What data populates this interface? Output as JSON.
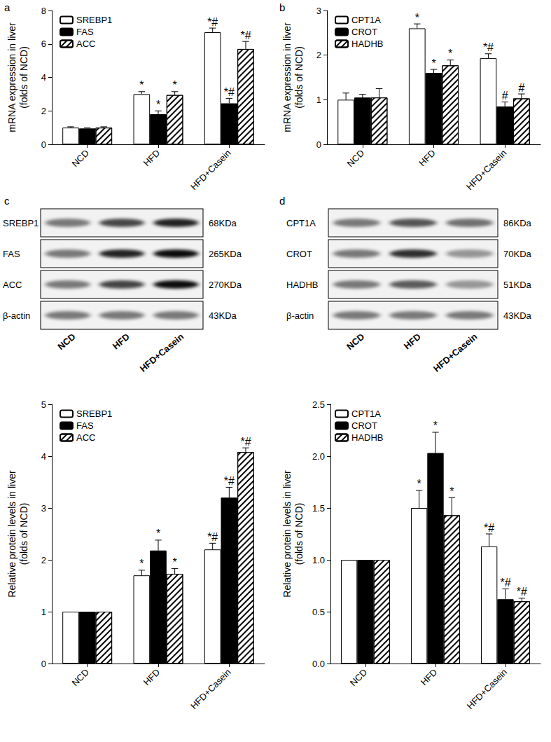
{
  "chart_data": [
    {
      "panel": "a",
      "type": "bar",
      "ylabel": "mRNA expression in liver\n(folds of NCD)",
      "categories": [
        "NCD",
        "HFD",
        "HFD+Casein"
      ],
      "ylim": [
        0,
        8
      ],
      "yticks": [
        0,
        2,
        4,
        6,
        8
      ],
      "grid": false,
      "legend": "upper left",
      "series": [
        {
          "name": "SREBP1",
          "color": "#ffffff",
          "values": [
            1.0,
            3.0,
            6.7
          ],
          "errors": [
            0.05,
            0.15,
            0.25
          ],
          "annotations": [
            null,
            "*",
            "*#"
          ]
        },
        {
          "name": "FAS",
          "color": "#000000",
          "values": [
            0.95,
            1.8,
            2.45
          ],
          "errors": [
            0.03,
            0.2,
            0.3
          ],
          "annotations": [
            null,
            "*",
            "*#"
          ]
        },
        {
          "name": "ACC",
          "color": "#ffffff",
          "marker": "hatched",
          "values": [
            1.0,
            2.95,
            5.7
          ],
          "errors": [
            0.05,
            0.2,
            0.45
          ],
          "annotations": [
            null,
            "*",
            "*#"
          ]
        }
      ]
    },
    {
      "panel": "b",
      "type": "bar",
      "ylabel": "mRNA expression in liver\n(folds of NCD)",
      "categories": [
        "NCD",
        "HFD",
        "HFD+Casein"
      ],
      "ylim": [
        0,
        3
      ],
      "yticks": [
        0,
        1,
        2,
        3
      ],
      "grid": false,
      "legend": "upper left",
      "series": [
        {
          "name": "CPT1A",
          "color": "#ffffff",
          "values": [
            1.0,
            2.6,
            1.93
          ],
          "errors": [
            0.15,
            0.1,
            0.1
          ],
          "annotations": [
            null,
            "*",
            "*#"
          ]
        },
        {
          "name": "CROT",
          "color": "#000000",
          "values": [
            1.05,
            1.6,
            0.85
          ],
          "errors": [
            0.07,
            0.08,
            0.1
          ],
          "annotations": [
            null,
            "*",
            "#"
          ]
        },
        {
          "name": "HADHB",
          "color": "#ffffff",
          "marker": "hatched",
          "values": [
            1.05,
            1.77,
            1.03
          ],
          "errors": [
            0.2,
            0.12,
            0.1
          ],
          "annotations": [
            null,
            "*",
            "#"
          ]
        }
      ]
    },
    {
      "type": "bar",
      "ylabel": "Relative protein levels in liver\n(folds of NCD)",
      "categories": [
        "NCD",
        "HFD",
        "HFD+Casein"
      ],
      "ylim": [
        0,
        5
      ],
      "yticks": [
        0,
        1,
        2,
        3,
        4,
        5
      ],
      "grid": false,
      "legend": "upper left",
      "series": [
        {
          "name": "SREBP1",
          "color": "#ffffff",
          "values": [
            1.0,
            1.7,
            2.2
          ],
          "errors": [
            0.0,
            0.1,
            0.12
          ],
          "annotations": [
            null,
            "*",
            "*#"
          ]
        },
        {
          "name": "FAS",
          "color": "#000000",
          "values": [
            1.0,
            2.18,
            3.2
          ],
          "errors": [
            0.0,
            0.2,
            0.2
          ],
          "annotations": [
            null,
            "*",
            "*#"
          ]
        },
        {
          "name": "ACC",
          "color": "#ffffff",
          "marker": "hatched",
          "values": [
            1.0,
            1.73,
            4.08
          ],
          "errors": [
            0.0,
            0.1,
            0.08
          ],
          "annotations": [
            null,
            "*",
            "*#"
          ]
        }
      ]
    },
    {
      "type": "bar",
      "ylabel": "Relative protein levels in liver\n(folds of NCD)",
      "categories": [
        "NCD",
        "HFD",
        "HFD+Casein"
      ],
      "ylim": [
        0,
        2.5
      ],
      "yticks": [
        {
          "value": 0,
          "label": "0.0"
        },
        0.5,
        {
          "value": 1,
          "label": "1.0"
        },
        1.5,
        {
          "value": 2,
          "label": "2.0"
        },
        2.5
      ],
      "grid": false,
      "legend": "upper left",
      "series": [
        {
          "name": "CPT1A",
          "color": "#ffffff",
          "values": [
            1.0,
            1.5,
            1.13
          ],
          "errors": [
            0.0,
            0.17,
            0.12
          ],
          "annotations": [
            null,
            "*",
            "*#"
          ]
        },
        {
          "name": "CROT",
          "color": "#000000",
          "values": [
            1.0,
            2.03,
            0.62
          ],
          "errors": [
            0.0,
            0.2,
            0.1
          ],
          "annotations": [
            null,
            "*",
            "*#"
          ]
        },
        {
          "name": "HADHB",
          "color": "#ffffff",
          "marker": "hatched",
          "values": [
            1.0,
            1.43,
            0.6
          ],
          "errors": [
            0.0,
            0.17,
            0.03
          ],
          "annotations": [
            null,
            "*",
            "*#"
          ]
        }
      ]
    }
  ],
  "blots": [
    {
      "panel": "c",
      "lanes": [
        "NCD",
        "HFD",
        "HFD+Casein"
      ],
      "rows": [
        {
          "label": "SREBP1",
          "size": "68KDa"
        },
        {
          "label": "FAS",
          "size": "265KDa"
        },
        {
          "label": "ACC",
          "size": "270KDa"
        },
        {
          "label": "β-actin",
          "size": "43KDa"
        }
      ]
    },
    {
      "panel": "d",
      "lanes": [
        "NCD",
        "HFD",
        "HFD+Casein"
      ],
      "rows": [
        {
          "label": "CPT1A",
          "size": "86KDa"
        },
        {
          "label": "CROT",
          "size": "70KDa"
        },
        {
          "label": "HADHB",
          "size": "51KDa"
        },
        {
          "label": "β-actin",
          "size": "43KDa"
        }
      ]
    }
  ]
}
